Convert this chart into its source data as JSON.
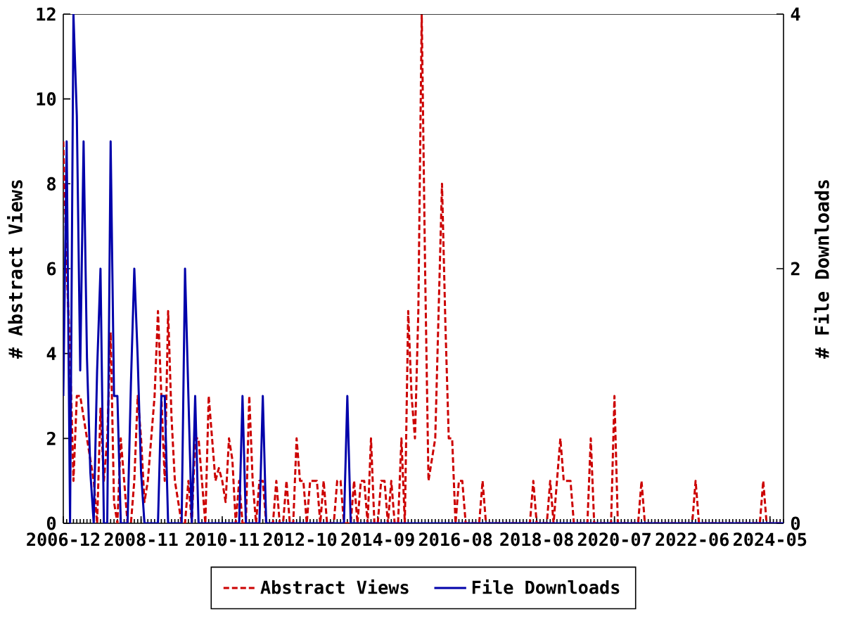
{
  "chart_data": {
    "type": "line",
    "ylabel": "# Abstract Views",
    "y2label": "# File Downloads",
    "xlim": [
      "2006-12",
      "2024-09"
    ],
    "xticks": [
      "2006-12",
      "2008-11",
      "2010-11",
      "2012-10",
      "2014-09",
      "2016-08",
      "2018-08",
      "2020-07",
      "2022-06",
      "2024-05"
    ],
    "ylim": [
      0,
      12
    ],
    "yticks": [
      0,
      2,
      4,
      6,
      8,
      10,
      12
    ],
    "y2lim": [
      0,
      4
    ],
    "y2ticks": [
      0,
      2,
      4
    ],
    "grid": false,
    "legend": "bottom",
    "marker": "none",
    "series": [
      {
        "name": "Abstract Views",
        "color": "#cc0000",
        "line_style": "dashed",
        "axis": "y",
        "x": [
          "2006-12",
          "2007-01",
          "2007-02",
          "2007-03",
          "2007-04",
          "2007-05",
          "2007-06",
          "2007-07",
          "2007-08",
          "2007-09",
          "2007-10",
          "2007-11",
          "2007-12",
          "2008-01",
          "2008-02",
          "2008-03",
          "2008-04",
          "2008-05",
          "2008-06",
          "2008-07",
          "2008-08",
          "2008-09",
          "2008-10",
          "2008-11",
          "2008-12",
          "2009-01",
          "2009-02",
          "2009-03",
          "2009-04",
          "2009-05",
          "2009-06",
          "2009-07",
          "2009-08",
          "2009-09",
          "2009-10",
          "2009-11",
          "2009-12",
          "2010-01",
          "2010-02",
          "2010-03",
          "2010-04",
          "2010-05",
          "2010-06",
          "2010-07",
          "2010-08",
          "2010-09",
          "2010-10",
          "2010-11",
          "2010-12",
          "2011-01",
          "2011-02",
          "2011-03",
          "2011-04",
          "2011-05",
          "2011-06",
          "2011-07",
          "2011-08",
          "2011-09",
          "2011-10",
          "2011-11",
          "2011-12",
          "2012-02",
          "2012-03",
          "2012-04",
          "2012-05",
          "2012-06",
          "2012-07",
          "2012-08",
          "2012-09",
          "2012-10",
          "2012-11",
          "2012-12",
          "2013-01",
          "2013-02",
          "2013-03",
          "2013-04",
          "2013-05",
          "2013-06",
          "2013-08",
          "2013-09",
          "2013-10",
          "2013-11",
          "2014-01",
          "2014-02",
          "2014-03",
          "2014-04",
          "2014-05",
          "2014-06",
          "2014-07",
          "2014-08",
          "2014-09",
          "2014-10",
          "2014-11",
          "2014-12",
          "2015-01",
          "2015-02",
          "2015-03",
          "2015-04",
          "2015-05",
          "2015-06",
          "2015-07",
          "2015-08",
          "2015-09",
          "2015-10",
          "2015-11",
          "2015-12",
          "2016-01",
          "2016-02",
          "2016-03",
          "2016-04",
          "2016-05",
          "2016-06",
          "2016-07",
          "2016-08",
          "2016-09",
          "2016-10",
          "2016-11",
          "2017-03",
          "2017-04",
          "2017-05",
          "2018-06",
          "2018-07",
          "2018-08",
          "2018-11",
          "2018-12",
          "2019-01",
          "2019-02",
          "2019-03",
          "2019-04",
          "2019-05",
          "2019-06",
          "2019-07",
          "2019-11",
          "2019-12",
          "2020-01",
          "2020-06",
          "2020-07",
          "2020-08",
          "2021-02",
          "2021-03",
          "2021-04",
          "2022-06",
          "2022-07",
          "2022-08",
          "2024-02",
          "2024-03",
          "2024-04",
          "2024-09"
        ],
        "values": [
          9,
          6,
          4,
          1,
          3,
          3,
          2.5,
          2,
          1.5,
          1,
          0,
          2.7,
          1,
          2,
          4.5,
          0.5,
          0,
          2,
          1,
          0,
          0,
          1,
          3,
          2,
          0.5,
          1,
          2,
          3,
          5,
          3,
          1,
          5,
          2.5,
          1,
          0.5,
          0,
          0,
          1,
          0,
          2,
          2,
          1,
          0,
          3,
          2,
          1,
          1.3,
          1,
          0.5,
          2,
          1.5,
          0,
          1,
          0,
          0,
          3,
          1,
          0,
          1,
          1,
          0,
          0,
          1,
          0,
          0,
          1,
          0,
          0,
          2,
          1,
          1,
          0,
          1,
          1,
          1,
          0,
          1,
          0,
          0,
          1,
          1,
          0,
          0,
          1,
          0,
          1,
          1,
          0,
          2,
          0,
          0,
          1,
          1,
          0,
          1,
          0,
          0,
          2,
          0,
          5,
          3,
          2,
          5,
          12,
          6,
          1,
          1.5,
          2,
          5,
          8,
          4.7,
          2,
          2,
          0,
          1,
          1,
          0,
          0,
          1,
          0,
          0,
          1,
          0,
          0,
          1,
          0,
          1,
          2,
          1,
          1,
          1,
          0,
          0,
          2,
          0,
          0,
          3,
          0,
          0,
          1,
          0,
          0,
          1,
          0,
          0,
          1,
          0,
          0
        ]
      },
      {
        "name": "File Downloads",
        "color": "#0000aa",
        "line_style": "solid",
        "axis": "y2",
        "x": [
          "2006-12",
          "2007-01",
          "2007-02",
          "2007-03",
          "2007-04",
          "2007-05",
          "2007-06",
          "2007-07",
          "2007-08",
          "2007-09",
          "2007-10",
          "2007-11",
          "2007-12",
          "2008-01",
          "2008-02",
          "2008-03",
          "2008-04",
          "2008-05",
          "2008-07",
          "2008-08",
          "2008-09",
          "2008-10",
          "2008-11",
          "2008-12",
          "2009-04",
          "2009-05",
          "2009-06",
          "2009-07",
          "2009-11",
          "2009-12",
          "2010-01",
          "2010-02",
          "2010-03",
          "2010-04",
          "2011-04",
          "2011-05",
          "2011-06",
          "2011-10",
          "2011-11",
          "2011-12",
          "2013-11",
          "2013-12",
          "2014-01",
          "2024-09"
        ],
        "values": [
          1,
          3,
          0,
          4,
          3.2,
          1.2,
          3,
          1.3,
          0.4,
          0,
          1.2,
          2,
          0,
          0,
          3,
          1,
          1,
          0,
          0,
          1.1,
          2,
          1.3,
          0.4,
          0,
          0,
          1,
          1,
          0,
          0,
          2,
          1,
          0,
          1,
          0,
          0,
          1,
          0,
          0,
          1,
          0,
          0,
          1,
          0,
          0
        ]
      }
    ]
  }
}
